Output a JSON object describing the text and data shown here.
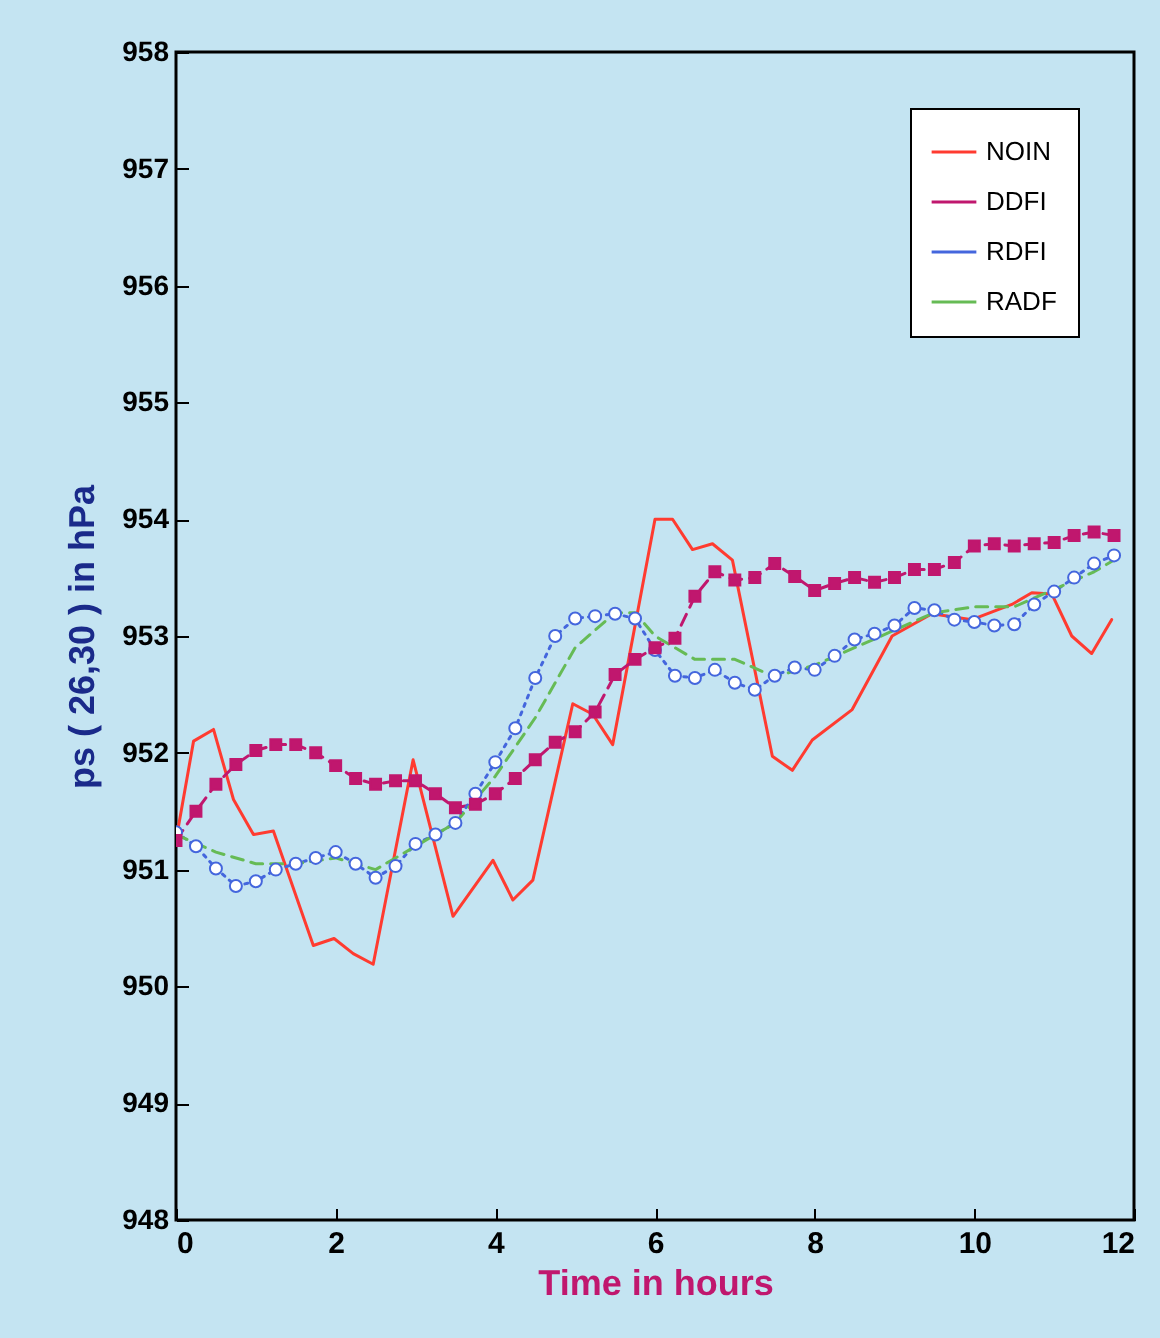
{
  "chart_data": {
    "type": "line",
    "xlabel": "Time in hours",
    "ylabel": "ps ( 26,30 ) in hPa",
    "xlim": [
      0,
      12
    ],
    "xticks": [
      0,
      2,
      4,
      6,
      8,
      10,
      12
    ],
    "ylim": [
      948,
      958
    ],
    "yticks": [
      948,
      949,
      950,
      951,
      952,
      953,
      954,
      955,
      956,
      957,
      958
    ],
    "grid": false,
    "legend": "top right",
    "series": [
      {
        "name": "NOIN",
        "color": "#ff3b30",
        "marker": "none",
        "line_style": "solid",
        "x": [
          0,
          0.22,
          0.47,
          0.72,
          0.97,
          1.22,
          1.72,
          1.98,
          2.22,
          2.47,
          2.97,
          3.47,
          3.97,
          4.22,
          4.47,
          4.97,
          5.22,
          5.47,
          6.0,
          6.22,
          6.47,
          6.72,
          6.97,
          7.47,
          7.72,
          7.97,
          8.47,
          8.97,
          9.47,
          9.97,
          10.47,
          10.72,
          10.97,
          11.22,
          11.47,
          11.72
        ],
        "values": [
          951.25,
          952.1,
          952.2,
          951.6,
          951.3,
          951.33,
          950.35,
          950.41,
          950.28,
          950.19,
          951.94,
          950.6,
          951.08,
          950.74,
          950.91,
          952.42,
          952.33,
          952.07,
          954.0,
          954.0,
          953.74,
          953.79,
          953.65,
          951.97,
          951.85,
          952.11,
          952.37,
          953.0,
          953.19,
          953.14,
          953.27,
          953.37,
          953.36,
          953.0,
          952.85,
          953.14
        ]
      },
      {
        "name": "DDFI",
        "color": "#c0176e",
        "marker": "square",
        "line_style": "dashed",
        "x": [
          0,
          0.25,
          0.5,
          0.75,
          1,
          1.25,
          1.5,
          1.75,
          2,
          2.25,
          2.5,
          2.75,
          3,
          3.25,
          3.5,
          3.75,
          4,
          4.25,
          4.5,
          4.75,
          5,
          5.25,
          5.5,
          5.75,
          6,
          6.25,
          6.5,
          6.75,
          7,
          7.25,
          7.5,
          7.75,
          8,
          8.25,
          8.5,
          8.75,
          9,
          9.25,
          9.5,
          9.75,
          10,
          10.25,
          10.5,
          10.75,
          11,
          11.25,
          11.5,
          11.75
        ],
        "values": [
          951.25,
          951.5,
          951.73,
          951.9,
          952.02,
          952.07,
          952.07,
          952.0,
          951.89,
          951.78,
          951.73,
          951.76,
          951.76,
          951.65,
          951.53,
          951.56,
          951.65,
          951.78,
          951.94,
          952.09,
          952.18,
          952.35,
          952.67,
          952.8,
          952.9,
          952.98,
          953.34,
          953.55,
          953.48,
          953.5,
          953.62,
          953.51,
          953.39,
          953.45,
          953.5,
          953.46,
          953.5,
          953.57,
          953.57,
          953.63,
          953.77,
          953.79,
          953.77,
          953.79,
          953.8,
          953.86,
          953.89,
          953.86
        ]
      },
      {
        "name": "RDFI",
        "color": "#4466dd",
        "marker": "circle",
        "line_style": "dotted",
        "x": [
          0,
          0.25,
          0.5,
          0.75,
          1,
          1.25,
          1.5,
          1.75,
          2,
          2.25,
          2.5,
          2.75,
          3,
          3.25,
          3.5,
          3.75,
          4,
          4.25,
          4.5,
          4.75,
          5,
          5.25,
          5.5,
          5.75,
          6,
          6.25,
          6.5,
          6.75,
          7,
          7.25,
          7.5,
          7.75,
          8,
          8.25,
          8.5,
          8.75,
          9,
          9.25,
          9.5,
          9.75,
          10,
          10.25,
          10.5,
          10.75,
          11,
          11.25,
          11.5,
          11.75
        ],
        "values": [
          951.32,
          951.2,
          951.01,
          950.86,
          950.9,
          951.0,
          951.05,
          951.1,
          951.15,
          951.05,
          950.93,
          951.03,
          951.22,
          951.3,
          951.4,
          951.65,
          951.92,
          952.21,
          952.64,
          953.0,
          953.15,
          953.17,
          953.19,
          953.15,
          952.88,
          952.66,
          952.64,
          952.71,
          952.6,
          952.54,
          952.66,
          952.73,
          952.71,
          952.83,
          952.97,
          953.02,
          953.09,
          953.24,
          953.22,
          953.14,
          953.12,
          953.09,
          953.1,
          953.27,
          953.38,
          953.5,
          953.62,
          953.69
        ]
      },
      {
        "name": "RADF",
        "color": "#66bb55",
        "marker": "none",
        "line_style": "dashed",
        "x": [
          0,
          0.5,
          1,
          1.5,
          2,
          2.5,
          3,
          3.5,
          4,
          4.5,
          5,
          5.5,
          5.75,
          6,
          6.5,
          7,
          7.5,
          8,
          8.5,
          9,
          9.5,
          10,
          10.5,
          11,
          11.5,
          11.75
        ],
        "values": [
          951.3,
          951.15,
          951.05,
          951.05,
          951.1,
          951.0,
          951.2,
          951.4,
          951.8,
          952.3,
          952.9,
          953.2,
          953.2,
          953.0,
          952.8,
          952.8,
          952.65,
          952.75,
          952.9,
          953.05,
          953.2,
          953.25,
          953.25,
          953.4,
          953.55,
          953.65
        ]
      }
    ]
  }
}
